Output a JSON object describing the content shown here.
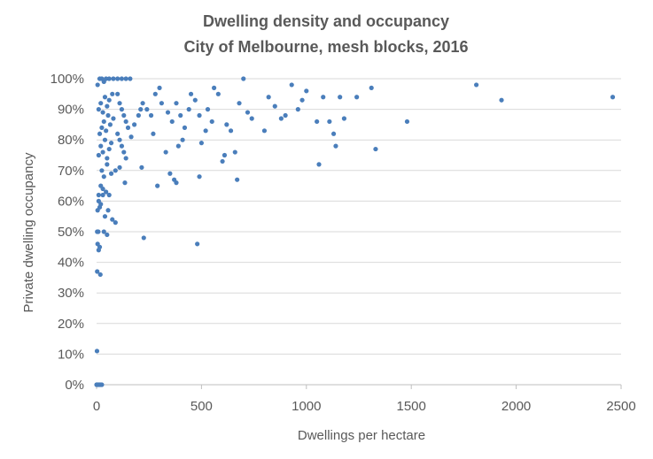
{
  "chart_data": {
    "type": "scatter",
    "title": "Dwelling density and occupancy",
    "subtitle": "City of Melbourne, mesh blocks, 2016",
    "xlabel": "Dwellings per hectare",
    "ylabel": "Private dwelling occupancy",
    "xlim": [
      0,
      2500
    ],
    "ylim": [
      0,
      1
    ],
    "x_ticks": [
      0,
      500,
      1000,
      1500,
      2000,
      2500
    ],
    "x_tick_labels": [
      "0",
      "500",
      "1000",
      "1500",
      "2000",
      "2500"
    ],
    "y_ticks": [
      0,
      0.1,
      0.2,
      0.3,
      0.4,
      0.5,
      0.6,
      0.7,
      0.8,
      0.9,
      1.0
    ],
    "y_tick_labels": [
      "0%",
      "10%",
      "20%",
      "30%",
      "40%",
      "50%",
      "60%",
      "70%",
      "80%",
      "90%",
      "100%"
    ],
    "grid": "horizontal",
    "legend": "none",
    "marker_color": "#4a7ebb",
    "series": [
      {
        "points": [
          [
            0,
            0
          ],
          [
            2,
            0
          ],
          [
            5,
            0
          ],
          [
            10,
            0
          ],
          [
            15,
            0
          ],
          [
            20,
            0
          ],
          [
            25,
            0
          ],
          [
            2,
            0.11
          ],
          [
            3,
            0.37
          ],
          [
            18,
            0.36
          ],
          [
            3,
            0.5
          ],
          [
            8,
            0.5
          ],
          [
            5,
            0.46
          ],
          [
            10,
            0.44
          ],
          [
            15,
            0.45
          ],
          [
            35,
            0.5
          ],
          [
            50,
            0.49
          ],
          [
            5,
            0.57
          ],
          [
            10,
            0.6
          ],
          [
            15,
            0.58
          ],
          [
            20,
            0.59
          ],
          [
            30,
            0.64
          ],
          [
            40,
            0.55
          ],
          [
            55,
            0.57
          ],
          [
            10,
            0.62
          ],
          [
            20,
            0.65
          ],
          [
            30,
            0.62
          ],
          [
            45,
            0.63
          ],
          [
            60,
            0.62
          ],
          [
            75,
            0.54
          ],
          [
            90,
            0.53
          ],
          [
            25,
            0.7
          ],
          [
            35,
            0.68
          ],
          [
            50,
            0.72
          ],
          [
            70,
            0.69
          ],
          [
            90,
            0.7
          ],
          [
            110,
            0.71
          ],
          [
            10,
            0.75
          ],
          [
            20,
            0.78
          ],
          [
            30,
            0.76
          ],
          [
            40,
            0.8
          ],
          [
            50,
            0.74
          ],
          [
            60,
            0.77
          ],
          [
            70,
            0.79
          ],
          [
            15,
            0.82
          ],
          [
            25,
            0.84
          ],
          [
            35,
            0.86
          ],
          [
            45,
            0.83
          ],
          [
            55,
            0.88
          ],
          [
            65,
            0.85
          ],
          [
            80,
            0.87
          ],
          [
            10,
            0.9
          ],
          [
            20,
            0.92
          ],
          [
            30,
            0.89
          ],
          [
            40,
            0.94
          ],
          [
            50,
            0.91
          ],
          [
            60,
            0.93
          ],
          [
            75,
            0.95
          ],
          [
            5,
            0.98
          ],
          [
            15,
            1.0
          ],
          [
            25,
            1.0
          ],
          [
            35,
            0.99
          ],
          [
            45,
            1.0
          ],
          [
            60,
            1.0
          ],
          [
            80,
            1.0
          ],
          [
            100,
            1.0
          ],
          [
            120,
            1.0
          ],
          [
            140,
            1.0
          ],
          [
            160,
            1.0
          ],
          [
            100,
            0.95
          ],
          [
            110,
            0.92
          ],
          [
            120,
            0.9
          ],
          [
            130,
            0.88
          ],
          [
            140,
            0.86
          ],
          [
            150,
            0.84
          ],
          [
            100,
            0.82
          ],
          [
            110,
            0.8
          ],
          [
            120,
            0.78
          ],
          [
            130,
            0.76
          ],
          [
            140,
            0.74
          ],
          [
            135,
            0.66
          ],
          [
            165,
            0.81
          ],
          [
            180,
            0.85
          ],
          [
            200,
            0.88
          ],
          [
            210,
            0.9
          ],
          [
            220,
            0.92
          ],
          [
            215,
            0.71
          ],
          [
            225,
            0.48
          ],
          [
            240,
            0.9
          ],
          [
            260,
            0.88
          ],
          [
            270,
            0.82
          ],
          [
            280,
            0.95
          ],
          [
            300,
            0.97
          ],
          [
            310,
            0.92
          ],
          [
            290,
            0.65
          ],
          [
            330,
            0.76
          ],
          [
            350,
            0.69
          ],
          [
            370,
            0.67
          ],
          [
            380,
            0.66
          ],
          [
            340,
            0.89
          ],
          [
            360,
            0.86
          ],
          [
            380,
            0.92
          ],
          [
            400,
            0.88
          ],
          [
            420,
            0.84
          ],
          [
            440,
            0.9
          ],
          [
            390,
            0.78
          ],
          [
            410,
            0.8
          ],
          [
            450,
            0.95
          ],
          [
            470,
            0.93
          ],
          [
            490,
            0.88
          ],
          [
            480,
            0.46
          ],
          [
            490,
            0.68
          ],
          [
            500,
            0.79
          ],
          [
            520,
            0.83
          ],
          [
            530,
            0.9
          ],
          [
            550,
            0.86
          ],
          [
            560,
            0.97
          ],
          [
            580,
            0.95
          ],
          [
            600,
            0.73
          ],
          [
            610,
            0.75
          ],
          [
            620,
            0.85
          ],
          [
            640,
            0.83
          ],
          [
            660,
            0.76
          ],
          [
            670,
            0.67
          ],
          [
            700,
            1.0
          ],
          [
            680,
            0.92
          ],
          [
            720,
            0.89
          ],
          [
            740,
            0.87
          ],
          [
            800,
            0.83
          ],
          [
            820,
            0.94
          ],
          [
            850,
            0.91
          ],
          [
            880,
            0.87
          ],
          [
            900,
            0.88
          ],
          [
            930,
            0.98
          ],
          [
            960,
            0.9
          ],
          [
            980,
            0.93
          ],
          [
            1000,
            0.96
          ],
          [
            1050,
            0.86
          ],
          [
            1060,
            0.72
          ],
          [
            1080,
            0.94
          ],
          [
            1110,
            0.86
          ],
          [
            1130,
            0.82
          ],
          [
            1140,
            0.78
          ],
          [
            1160,
            0.94
          ],
          [
            1180,
            0.87
          ],
          [
            1240,
            0.94
          ],
          [
            1310,
            0.97
          ],
          [
            1330,
            0.77
          ],
          [
            1480,
            0.86
          ],
          [
            1810,
            0.98
          ],
          [
            1930,
            0.93
          ],
          [
            2460,
            0.94
          ]
        ]
      }
    ]
  }
}
